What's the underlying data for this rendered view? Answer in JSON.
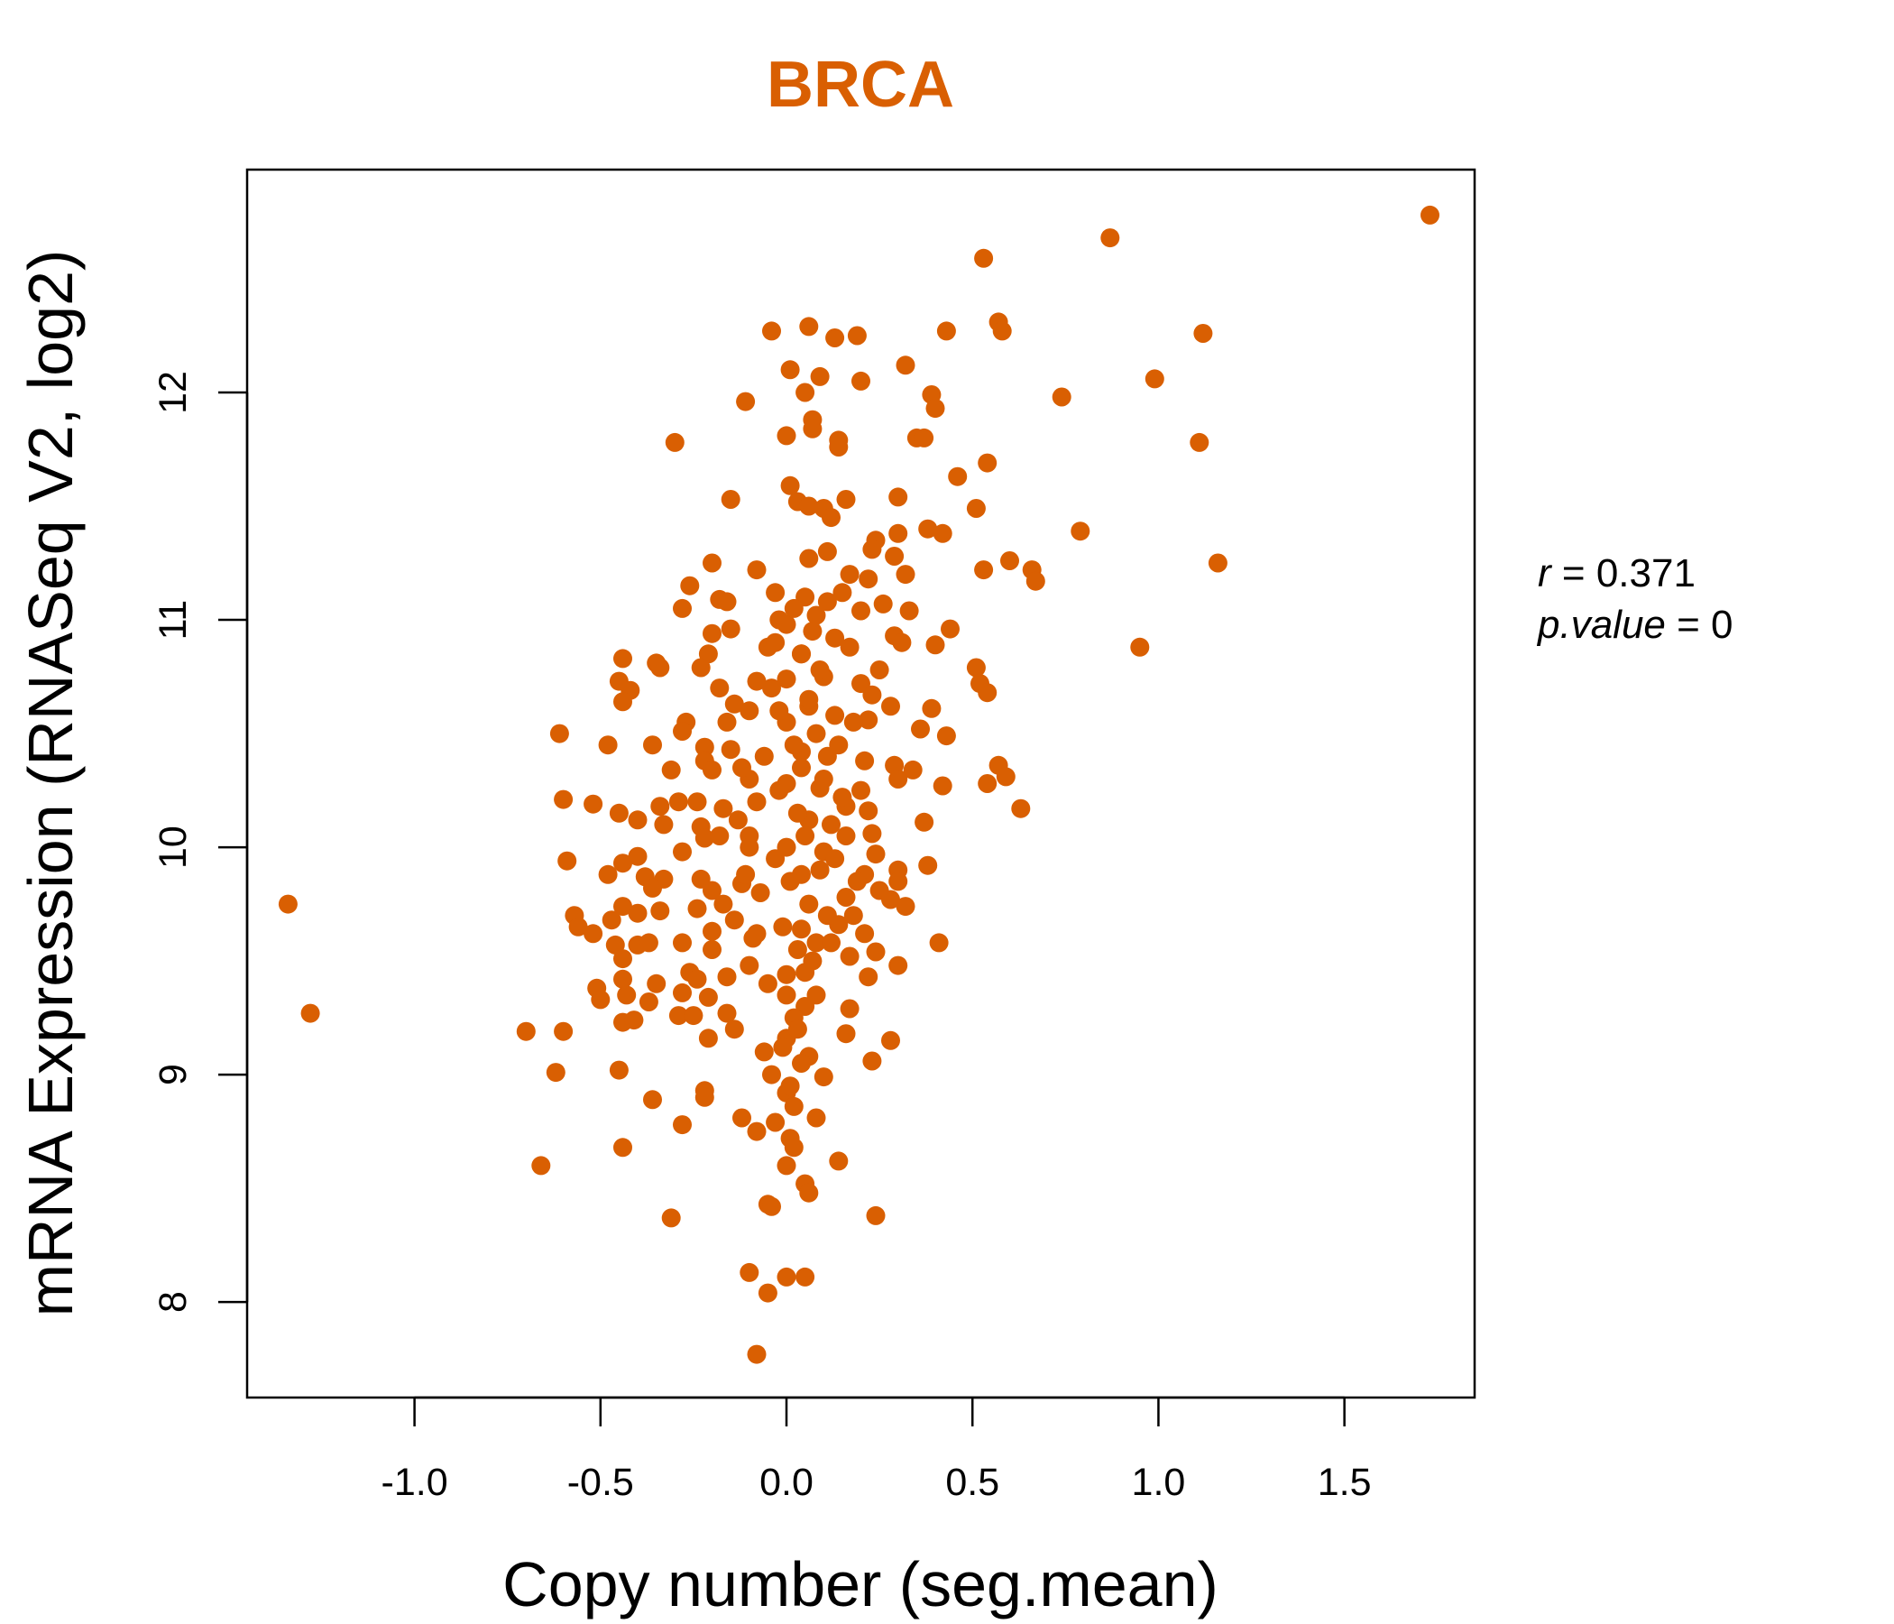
{
  "colors": {
    "point": "#D95F02",
    "title": "#D95F02",
    "axis": "#000000"
  },
  "chart_data": {
    "type": "scatter",
    "title": "BRCA",
    "xlabel": "Copy number (seg.mean)",
    "ylabel": "mRNA Expression (RNASeq V2, log2)",
    "xlim": [
      -1.45,
      1.85
    ],
    "ylim": [
      7.58,
      12.98
    ],
    "xticks": [
      -1.0,
      -0.5,
      0.0,
      0.5,
      1.0,
      1.5
    ],
    "xtick_labels": [
      "-1.0",
      "-0.5",
      "0.0",
      "0.5",
      "1.0",
      "1.5"
    ],
    "yticks": [
      8,
      9,
      10,
      11,
      12
    ],
    "ytick_labels": [
      "8",
      "9",
      "10",
      "11",
      "12"
    ],
    "grid": false,
    "legend": "none",
    "annotation": {
      "r_symbol": "r",
      "r_value": "0.371",
      "p_symbol": "p.value",
      "p_value": "0"
    },
    "points": [
      [
        1.73,
        12.78
      ],
      [
        0.87,
        12.68
      ],
      [
        0.53,
        12.59
      ],
      [
        0.57,
        12.31
      ],
      [
        0.58,
        12.27
      ],
      [
        1.12,
        12.26
      ],
      [
        0.43,
        12.27
      ],
      [
        -0.04,
        12.27
      ],
      [
        0.06,
        12.29
      ],
      [
        0.13,
        12.24
      ],
      [
        0.19,
        12.25
      ],
      [
        0.74,
        11.98
      ],
      [
        0.99,
        12.06
      ],
      [
        0.32,
        12.12
      ],
      [
        0.01,
        12.1
      ],
      [
        0.09,
        12.07
      ],
      [
        0.2,
        12.05
      ],
      [
        0.05,
        12.0
      ],
      [
        -0.11,
        11.96
      ],
      [
        0.39,
        11.99
      ],
      [
        0.4,
        11.93
      ],
      [
        0.07,
        11.88
      ],
      [
        0.07,
        11.84
      ],
      [
        0.0,
        11.81
      ],
      [
        0.14,
        11.79
      ],
      [
        0.14,
        11.76
      ],
      [
        0.35,
        11.8
      ],
      [
        0.37,
        11.8
      ],
      [
        -0.3,
        11.78
      ],
      [
        1.11,
        11.78
      ],
      [
        0.54,
        11.69
      ],
      [
        0.46,
        11.63
      ],
      [
        0.01,
        11.59
      ],
      [
        0.03,
        11.52
      ],
      [
        0.06,
        11.5
      ],
      [
        0.1,
        11.49
      ],
      [
        0.16,
        11.53
      ],
      [
        0.3,
        11.54
      ],
      [
        0.51,
        11.49
      ],
      [
        0.12,
        11.45
      ],
      [
        -0.15,
        11.53
      ],
      [
        0.38,
        11.4
      ],
      [
        0.42,
        11.38
      ],
      [
        0.79,
        11.39
      ],
      [
        0.3,
        11.38
      ],
      [
        0.24,
        11.35
      ],
      [
        0.23,
        11.31
      ],
      [
        0.11,
        11.3
      ],
      [
        0.06,
        11.27
      ],
      [
        0.29,
        11.28
      ],
      [
        0.6,
        11.26
      ],
      [
        1.16,
        11.25
      ],
      [
        -0.2,
        11.25
      ],
      [
        -0.08,
        11.22
      ],
      [
        0.17,
        11.2
      ],
      [
        0.32,
        11.2
      ],
      [
        0.53,
        11.22
      ],
      [
        0.66,
        11.22
      ],
      [
        0.67,
        11.17
      ],
      [
        -0.26,
        11.15
      ],
      [
        -0.03,
        11.12
      ],
      [
        0.05,
        11.1
      ],
      [
        0.11,
        11.08
      ],
      [
        0.15,
        11.12
      ],
      [
        0.22,
        11.18
      ],
      [
        -0.18,
        11.09
      ],
      [
        -0.16,
        11.08
      ],
      [
        -0.28,
        11.05
      ],
      [
        0.26,
        11.07
      ],
      [
        0.33,
        11.04
      ],
      [
        0.2,
        11.04
      ],
      [
        0.08,
        11.02
      ],
      [
        -0.02,
        11.0
      ],
      [
        0.0,
        10.98
      ],
      [
        0.44,
        10.96
      ],
      [
        -0.15,
        10.96
      ],
      [
        -0.2,
        10.94
      ],
      [
        0.29,
        10.93
      ],
      [
        0.31,
        10.9
      ],
      [
        0.4,
        10.89
      ],
      [
        0.95,
        10.88
      ],
      [
        0.13,
        10.92
      ],
      [
        0.17,
        10.88
      ],
      [
        -0.05,
        10.88
      ],
      [
        0.04,
        10.85
      ],
      [
        -0.21,
        10.85
      ],
      [
        -0.44,
        10.83
      ],
      [
        -0.35,
        10.81
      ],
      [
        -0.34,
        10.79
      ],
      [
        -0.23,
        10.79
      ],
      [
        0.51,
        10.79
      ],
      [
        0.52,
        10.72
      ],
      [
        0.54,
        10.68
      ],
      [
        0.25,
        10.78
      ],
      [
        0.1,
        10.75
      ],
      [
        0.0,
        10.74
      ],
      [
        -0.08,
        10.73
      ],
      [
        -0.18,
        10.7
      ],
      [
        -0.45,
        10.73
      ],
      [
        -0.42,
        10.69
      ],
      [
        -0.44,
        10.64
      ],
      [
        0.2,
        10.72
      ],
      [
        0.23,
        10.67
      ],
      [
        0.28,
        10.62
      ],
      [
        0.39,
        10.61
      ],
      [
        -0.14,
        10.63
      ],
      [
        -0.1,
        10.6
      ],
      [
        0.06,
        10.62
      ],
      [
        0.13,
        10.58
      ],
      [
        0.22,
        10.56
      ],
      [
        -0.27,
        10.55
      ],
      [
        -0.28,
        10.51
      ],
      [
        0.36,
        10.52
      ],
      [
        0.43,
        10.49
      ],
      [
        -0.61,
        10.5
      ],
      [
        -0.48,
        10.45
      ],
      [
        -0.36,
        10.45
      ],
      [
        -0.22,
        10.44
      ],
      [
        -0.15,
        10.43
      ],
      [
        0.04,
        10.42
      ],
      [
        0.11,
        10.4
      ],
      [
        0.21,
        10.38
      ],
      [
        0.29,
        10.36
      ],
      [
        0.34,
        10.34
      ],
      [
        -0.22,
        10.38
      ],
      [
        -0.2,
        10.34
      ],
      [
        -0.31,
        10.34
      ],
      [
        0.57,
        10.36
      ],
      [
        0.59,
        10.31
      ],
      [
        0.54,
        10.28
      ],
      [
        0.42,
        10.27
      ],
      [
        0.3,
        10.3
      ],
      [
        -0.1,
        10.3
      ],
      [
        0.0,
        10.28
      ],
      [
        0.09,
        10.26
      ],
      [
        -0.6,
        10.21
      ],
      [
        -0.52,
        10.19
      ],
      [
        -0.34,
        10.18
      ],
      [
        -0.29,
        10.2
      ],
      [
        -0.24,
        10.2
      ],
      [
        -0.17,
        10.17
      ],
      [
        0.16,
        10.18
      ],
      [
        0.22,
        10.16
      ],
      [
        0.63,
        10.17
      ],
      [
        -0.45,
        10.15
      ],
      [
        -0.4,
        10.12
      ],
      [
        -0.33,
        10.1
      ],
      [
        -0.23,
        10.09
      ],
      [
        0.06,
        10.12
      ],
      [
        0.37,
        10.11
      ],
      [
        0.23,
        10.06
      ],
      [
        0.16,
        10.05
      ],
      [
        -0.1,
        10.05
      ],
      [
        -0.22,
        10.04
      ],
      [
        0.0,
        10.0
      ],
      [
        0.1,
        9.98
      ],
      [
        0.24,
        9.97
      ],
      [
        -0.28,
        9.98
      ],
      [
        -0.4,
        9.96
      ],
      [
        -0.44,
        9.93
      ],
      [
        -0.59,
        9.94
      ],
      [
        -0.48,
        9.88
      ],
      [
        -0.38,
        9.87
      ],
      [
        -0.33,
        9.86
      ],
      [
        -0.23,
        9.86
      ],
      [
        0.04,
        9.88
      ],
      [
        0.21,
        9.88
      ],
      [
        0.3,
        9.9
      ],
      [
        0.38,
        9.92
      ],
      [
        0.3,
        9.85
      ],
      [
        -0.12,
        9.84
      ],
      [
        -0.2,
        9.81
      ],
      [
        -0.36,
        9.82
      ],
      [
        0.25,
        9.81
      ],
      [
        0.28,
        9.77
      ],
      [
        0.32,
        9.74
      ],
      [
        -0.44,
        9.74
      ],
      [
        -0.4,
        9.71
      ],
      [
        -0.34,
        9.72
      ],
      [
        -0.24,
        9.73
      ],
      [
        -0.57,
        9.7
      ],
      [
        -0.56,
        9.65
      ],
      [
        -0.47,
        9.68
      ],
      [
        0.18,
        9.7
      ],
      [
        0.14,
        9.66
      ],
      [
        0.04,
        9.64
      ],
      [
        -0.08,
        9.62
      ],
      [
        -0.2,
        9.63
      ],
      [
        -0.52,
        9.62
      ],
      [
        -0.46,
        9.57
      ],
      [
        -0.4,
        9.57
      ],
      [
        -0.37,
        9.58
      ],
      [
        -0.28,
        9.58
      ],
      [
        -0.2,
        9.55
      ],
      [
        0.08,
        9.58
      ],
      [
        0.41,
        9.58
      ],
      [
        0.24,
        9.54
      ],
      [
        0.17,
        9.52
      ],
      [
        0.3,
        9.48
      ],
      [
        -0.44,
        9.51
      ],
      [
        -0.51,
        9.38
      ],
      [
        -0.44,
        9.42
      ],
      [
        -0.35,
        9.4
      ],
      [
        -0.26,
        9.45
      ],
      [
        -0.24,
        9.42
      ],
      [
        -0.16,
        9.43
      ],
      [
        0.0,
        9.44
      ],
      [
        0.22,
        9.43
      ],
      [
        -0.28,
        9.36
      ],
      [
        -0.21,
        9.34
      ],
      [
        -0.5,
        9.33
      ],
      [
        -0.43,
        9.35
      ],
      [
        -0.37,
        9.32
      ],
      [
        -0.29,
        9.26
      ],
      [
        -0.25,
        9.26
      ],
      [
        -0.16,
        9.27
      ],
      [
        0.05,
        9.3
      ],
      [
        0.17,
        9.29
      ],
      [
        -0.44,
        9.23
      ],
      [
        -0.41,
        9.24
      ],
      [
        -0.7,
        9.19
      ],
      [
        -0.6,
        9.19
      ],
      [
        -0.21,
        9.16
      ],
      [
        -0.14,
        9.2
      ],
      [
        0.16,
        9.18
      ],
      [
        0.28,
        9.15
      ],
      [
        0.0,
        9.16
      ],
      [
        -0.06,
        9.1
      ],
      [
        0.06,
        9.08
      ],
      [
        0.23,
        9.06
      ],
      [
        -0.45,
        9.02
      ],
      [
        -0.62,
        9.01
      ],
      [
        -0.04,
        9.0
      ],
      [
        0.1,
        8.99
      ],
      [
        -0.22,
        8.93
      ],
      [
        -0.22,
        8.9
      ],
      [
        0.0,
        8.92
      ],
      [
        -0.36,
        8.89
      ],
      [
        0.02,
        8.86
      ],
      [
        -0.12,
        8.81
      ],
      [
        0.08,
        8.81
      ],
      [
        -0.03,
        8.79
      ],
      [
        -0.28,
        8.78
      ],
      [
        -0.08,
        8.75
      ],
      [
        0.01,
        8.72
      ],
      [
        -0.44,
        8.68
      ],
      [
        0.02,
        8.68
      ],
      [
        0.14,
        8.62
      ],
      [
        -0.66,
        8.6
      ],
      [
        0.0,
        8.6
      ],
      [
        0.05,
        8.52
      ],
      [
        0.06,
        8.48
      ],
      [
        -0.05,
        8.43
      ],
      [
        -0.04,
        8.42
      ],
      [
        0.24,
        8.38
      ],
      [
        -0.31,
        8.37
      ],
      [
        -0.1,
        8.13
      ],
      [
        0.0,
        8.11
      ],
      [
        0.05,
        8.11
      ],
      [
        -0.05,
        8.04
      ],
      [
        -0.08,
        7.77
      ],
      [
        -1.34,
        9.75
      ],
      [
        -1.28,
        9.27
      ],
      [
        0.0,
        10.55
      ],
      [
        0.02,
        10.45
      ],
      [
        0.04,
        10.35
      ],
      [
        -0.02,
        10.25
      ],
      [
        0.03,
        10.15
      ],
      [
        0.05,
        10.05
      ],
      [
        -0.03,
        9.95
      ],
      [
        0.01,
        9.85
      ],
      [
        0.06,
        9.75
      ],
      [
        -0.01,
        9.65
      ],
      [
        0.03,
        9.55
      ],
      [
        0.05,
        9.45
      ],
      [
        0.0,
        9.35
      ],
      [
        0.02,
        9.25
      ],
      [
        0.06,
        10.65
      ],
      [
        -0.04,
        10.7
      ],
      [
        0.08,
        10.5
      ],
      [
        -0.06,
        10.4
      ],
      [
        0.1,
        10.3
      ],
      [
        -0.08,
        10.2
      ],
      [
        0.12,
        10.1
      ],
      [
        -0.1,
        10.0
      ],
      [
        0.09,
        9.9
      ],
      [
        -0.07,
        9.8
      ],
      [
        0.11,
        9.7
      ],
      [
        -0.09,
        9.6
      ],
      [
        0.07,
        9.5
      ],
      [
        -0.05,
        9.4
      ],
      [
        0.04,
        10.85
      ],
      [
        0.09,
        10.78
      ],
      [
        -0.02,
        10.6
      ],
      [
        0.14,
        10.45
      ],
      [
        -0.12,
        10.35
      ],
      [
        0.15,
        10.22
      ],
      [
        -0.13,
        10.12
      ],
      [
        0.13,
        9.95
      ],
      [
        -0.11,
        9.88
      ],
      [
        0.16,
        9.78
      ],
      [
        -0.14,
        9.68
      ],
      [
        0.12,
        9.58
      ],
      [
        -0.1,
        9.48
      ],
      [
        0.08,
        9.35
      ],
      [
        0.18,
        10.55
      ],
      [
        -0.16,
        10.55
      ],
      [
        0.2,
        10.25
      ],
      [
        -0.18,
        10.05
      ],
      [
        0.19,
        9.85
      ],
      [
        -0.17,
        9.75
      ],
      [
        0.21,
        9.62
      ],
      [
        0.03,
        9.2
      ],
      [
        -0.01,
        9.12
      ],
      [
        0.04,
        9.05
      ],
      [
        0.01,
        8.95
      ],
      [
        0.07,
        10.95
      ],
      [
        0.02,
        11.05
      ],
      [
        -0.03,
        10.9
      ]
    ]
  }
}
